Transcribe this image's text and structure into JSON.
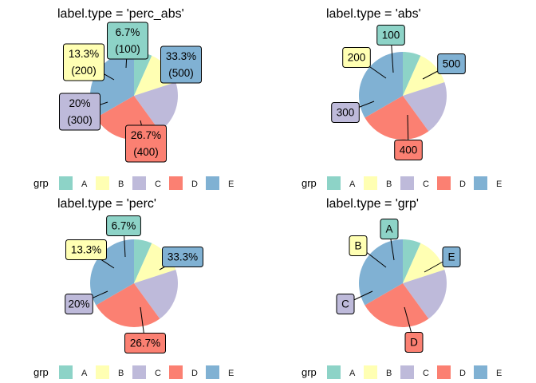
{
  "chart_data": [
    {
      "type": "pie",
      "title": "label.type = 'perc_abs'",
      "categories": [
        "A",
        "B",
        "C",
        "D",
        "E"
      ],
      "values": [
        100,
        200,
        300,
        400,
        500
      ],
      "labels": [
        [
          "6.7%",
          "(100)"
        ],
        [
          "13.3%",
          "(200)"
        ],
        [
          "20%",
          "(300)"
        ],
        [
          "26.7%",
          "(400)"
        ],
        [
          "33.3%",
          "(500)"
        ]
      ],
      "legend": {
        "title": "grp",
        "position": "bottom",
        "entries": [
          "A",
          "B",
          "C",
          "D",
          "E"
        ]
      }
    },
    {
      "type": "pie",
      "title": "label.type = 'abs'",
      "categories": [
        "A",
        "B",
        "C",
        "D",
        "E"
      ],
      "values": [
        100,
        200,
        300,
        400,
        500
      ],
      "labels": [
        [
          "100"
        ],
        [
          "200"
        ],
        [
          "300"
        ],
        [
          "400"
        ],
        [
          "500"
        ]
      ],
      "legend": {
        "title": "grp",
        "position": "bottom",
        "entries": [
          "A",
          "B",
          "C",
          "D",
          "E"
        ]
      }
    },
    {
      "type": "pie",
      "title": "label.type = 'perc'",
      "categories": [
        "A",
        "B",
        "C",
        "D",
        "E"
      ],
      "values": [
        100,
        200,
        300,
        400,
        500
      ],
      "labels": [
        [
          "6.7%"
        ],
        [
          "13.3%"
        ],
        [
          "20%"
        ],
        [
          "26.7%"
        ],
        [
          "33.3%"
        ]
      ],
      "legend": {
        "title": "grp",
        "position": "bottom",
        "entries": [
          "A",
          "B",
          "C",
          "D",
          "E"
        ]
      }
    },
    {
      "type": "pie",
      "title": "label.type = 'grp'",
      "categories": [
        "A",
        "B",
        "C",
        "D",
        "E"
      ],
      "values": [
        100,
        200,
        300,
        400,
        500
      ],
      "labels": [
        [
          "A"
        ],
        [
          "B"
        ],
        [
          "C"
        ],
        [
          "D"
        ],
        [
          "E"
        ]
      ],
      "legend": {
        "title": "grp",
        "position": "bottom",
        "entries": [
          "A",
          "B",
          "C",
          "D",
          "E"
        ]
      }
    }
  ],
  "colors": {
    "A": "#8dd3c7",
    "B": "#ffffb3",
    "C": "#bebada",
    "D": "#fb8072",
    "E": "#80b1d3"
  }
}
